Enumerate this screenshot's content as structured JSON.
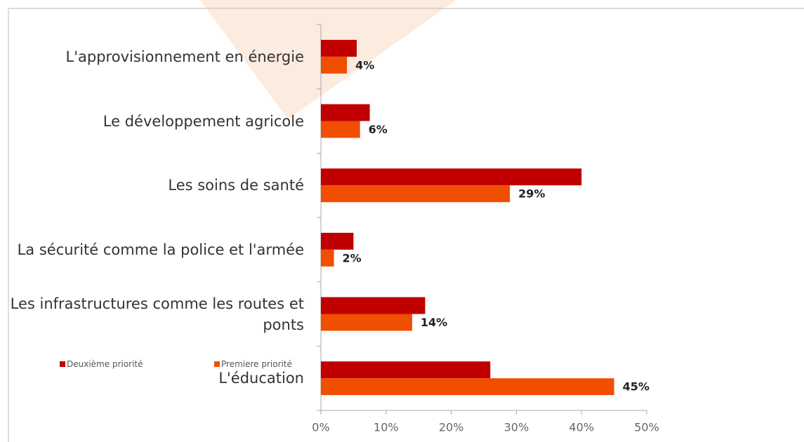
{
  "chart_data": {
    "type": "hbar",
    "categories": [
      "L'approvisionnement en énergie",
      "Le développement agricole",
      "Les soins de santé",
      "La sécurité comme la police et l'armée",
      "Les infrastructures comme les routes et ponts",
      "L'éducation"
    ],
    "series": [
      {
        "name": "Deuxième priorité",
        "color": "#c00000",
        "values": [
          5.5,
          7.5,
          40,
          5,
          16,
          26
        ]
      },
      {
        "name": "Premiere priorité",
        "color": "#f04e00",
        "values": [
          4,
          6,
          29,
          2,
          14,
          45
        ],
        "value_labels": [
          "4%",
          "6%",
          "29%",
          "2%",
          "14%",
          "45%"
        ]
      }
    ],
    "xlim": [
      0,
      50
    ],
    "xticks": [
      {
        "value": 0,
        "label": "0%"
      },
      {
        "value": 10,
        "label": "10%"
      },
      {
        "value": 20,
        "label": "20%"
      },
      {
        "value": 30,
        "label": "30%"
      },
      {
        "value": 40,
        "label": "40%"
      },
      {
        "value": 50,
        "label": "50%"
      }
    ]
  }
}
